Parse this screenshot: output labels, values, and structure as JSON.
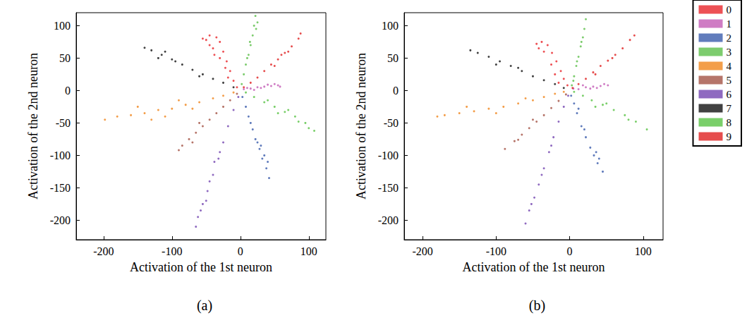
{
  "chart_data": [
    {
      "type": "scatter",
      "title": "(a)",
      "x_label": "Activation of the 1st neuron",
      "y_label": "Activation of the 2nd neuron",
      "xlim": [
        -240,
        125
      ],
      "ylim": [
        -230,
        120
      ],
      "xticks": [
        -200,
        -100,
        0,
        100
      ],
      "yticks": [
        -200,
        -150,
        -100,
        -50,
        0,
        50,
        100
      ],
      "series": [
        {
          "name": "0",
          "color": "#e8262a",
          "values": [
            [
              -5,
              5
            ],
            [
              -10,
              15
            ],
            [
              -15,
              30
            ],
            [
              -20,
              45
            ],
            [
              -25,
              60
            ],
            [
              -30,
              75
            ],
            [
              -35,
              82
            ],
            [
              -45,
              85
            ],
            [
              -50,
              78
            ],
            [
              -40,
              65
            ],
            [
              -30,
              50
            ],
            [
              -22,
              35
            ],
            [
              -45,
              70
            ],
            [
              -55,
              80
            ],
            [
              -18,
              20
            ],
            [
              -38,
              55
            ]
          ]
        },
        {
          "name": "1",
          "color": "#c35bb5",
          "values": [
            [
              5,
              2
            ],
            [
              15,
              3
            ],
            [
              25,
              5
            ],
            [
              35,
              6
            ],
            [
              45,
              7
            ],
            [
              55,
              8
            ],
            [
              50,
              10
            ],
            [
              40,
              9
            ],
            [
              30,
              4
            ],
            [
              20,
              1
            ],
            [
              10,
              4
            ],
            [
              58,
              6
            ]
          ]
        },
        {
          "name": "2",
          "color": "#3a5bab",
          "values": [
            [
              3,
              -10
            ],
            [
              8,
              -25
            ],
            [
              12,
              -40
            ],
            [
              18,
              -60
            ],
            [
              22,
              -75
            ],
            [
              28,
              -90
            ],
            [
              32,
              -105
            ],
            [
              38,
              -120
            ],
            [
              42,
              -135
            ],
            [
              35,
              -100
            ],
            [
              25,
              -80
            ],
            [
              15,
              -50
            ],
            [
              40,
              -110
            ],
            [
              30,
              -85
            ]
          ]
        },
        {
          "name": "3",
          "color": "#5cbf4a",
          "values": [
            [
              2,
              10
            ],
            [
              5,
              25
            ],
            [
              8,
              40
            ],
            [
              12,
              55
            ],
            [
              15,
              70
            ],
            [
              18,
              85
            ],
            [
              20,
              100
            ],
            [
              22,
              115
            ],
            [
              25,
              105
            ],
            [
              14,
              75
            ],
            [
              10,
              50
            ],
            [
              23,
              95
            ]
          ]
        },
        {
          "name": "4",
          "color": "#f0861d",
          "values": [
            [
              -10,
              -3
            ],
            [
              -25,
              -8
            ],
            [
              -40,
              -12
            ],
            [
              -60,
              -18
            ],
            [
              -80,
              -22
            ],
            [
              -100,
              -28
            ],
            [
              -120,
              -30
            ],
            [
              -140,
              -35
            ],
            [
              -160,
              -38
            ],
            [
              -180,
              -40
            ],
            [
              -198,
              -45
            ],
            [
              -150,
              -25
            ],
            [
              -110,
              -40
            ],
            [
              -70,
              -28
            ],
            [
              -130,
              -45
            ],
            [
              -90,
              -15
            ]
          ]
        },
        {
          "name": "5",
          "color": "#a45245",
          "values": [
            [
              -5,
              -5
            ],
            [
              -15,
              -15
            ],
            [
              -25,
              -25
            ],
            [
              -35,
              -35
            ],
            [
              -45,
              -45
            ],
            [
              -55,
              -55
            ],
            [
              -65,
              -65
            ],
            [
              -75,
              -75
            ],
            [
              -85,
              -85
            ],
            [
              -90,
              -92
            ],
            [
              -60,
              -50
            ],
            [
              -70,
              -80
            ]
          ]
        },
        {
          "name": "6",
          "color": "#7345b0",
          "values": [
            [
              -3,
              -10
            ],
            [
              -10,
              -30
            ],
            [
              -18,
              -55
            ],
            [
              -25,
              -80
            ],
            [
              -32,
              -105
            ],
            [
              -40,
              -130
            ],
            [
              -48,
              -155
            ],
            [
              -55,
              -175
            ],
            [
              -62,
              -195
            ],
            [
              -65,
              -210
            ],
            [
              -50,
              -170
            ],
            [
              -38,
              -110
            ],
            [
              -58,
              -185
            ],
            [
              -45,
              -140
            ],
            [
              -30,
              -95
            ]
          ]
        },
        {
          "name": "7",
          "color": "#111111",
          "values": [
            [
              -10,
              5
            ],
            [
              -25,
              12
            ],
            [
              -40,
              18
            ],
            [
              -55,
              25
            ],
            [
              -70,
              32
            ],
            [
              -85,
              40
            ],
            [
              -100,
              48
            ],
            [
              -115,
              55
            ],
            [
              -130,
              62
            ],
            [
              -140,
              66
            ],
            [
              -120,
              50
            ],
            [
              -95,
              45
            ],
            [
              -60,
              22
            ],
            [
              -110,
              60
            ]
          ]
        },
        {
          "name": "8",
          "color": "#59c345",
          "values": [
            [
              8,
              -3
            ],
            [
              20,
              -10
            ],
            [
              35,
              -18
            ],
            [
              50,
              -25
            ],
            [
              65,
              -33
            ],
            [
              80,
              -40
            ],
            [
              95,
              -50
            ],
            [
              108,
              -62
            ],
            [
              100,
              -58
            ],
            [
              70,
              -30
            ],
            [
              55,
              -35
            ],
            [
              85,
              -48
            ],
            [
              40,
              -15
            ]
          ]
        },
        {
          "name": "9",
          "color": "#e02020",
          "values": [
            [
              5,
              5
            ],
            [
              15,
              12
            ],
            [
              25,
              20
            ],
            [
              35,
              30
            ],
            [
              45,
              40
            ],
            [
              55,
              48
            ],
            [
              65,
              58
            ],
            [
              75,
              68
            ],
            [
              85,
              80
            ],
            [
              88,
              88
            ],
            [
              60,
              55
            ],
            [
              70,
              60
            ],
            [
              50,
              38
            ]
          ]
        }
      ]
    },
    {
      "type": "scatter",
      "title": "(b)",
      "legend": "right",
      "x_label": "Activation of the 1st neuron",
      "y_label": "Activation of the 2nd neuron",
      "xlim": [
        -225,
        127
      ],
      "ylim": [
        -230,
        120
      ],
      "xticks": [
        -200,
        -100,
        0,
        100
      ],
      "yticks": [
        -200,
        -150,
        -100,
        -50,
        0,
        50,
        100
      ],
      "series": [
        {
          "name": "0",
          "color": "#e8262a",
          "values": [
            [
              -3,
              8
            ],
            [
              -8,
              18
            ],
            [
              -12,
              30
            ],
            [
              -18,
              45
            ],
            [
              -24,
              58
            ],
            [
              -30,
              70
            ],
            [
              -38,
              75
            ],
            [
              -45,
              72
            ],
            [
              -35,
              60
            ],
            [
              -25,
              40
            ],
            [
              -15,
              12
            ],
            [
              -42,
              65
            ],
            [
              -20,
              25
            ]
          ]
        },
        {
          "name": "1",
          "color": "#c35bb5",
          "values": [
            [
              5,
              3
            ],
            [
              12,
              2
            ],
            [
              22,
              5
            ],
            [
              32,
              6
            ],
            [
              42,
              7
            ],
            [
              52,
              8
            ],
            [
              47,
              10
            ],
            [
              37,
              4
            ],
            [
              18,
              8
            ],
            [
              28,
              3
            ]
          ]
        },
        {
          "name": "2",
          "color": "#3a5bab",
          "values": [
            [
              2,
              -8
            ],
            [
              6,
              -20
            ],
            [
              10,
              -35
            ],
            [
              16,
              -55
            ],
            [
              22,
              -72
            ],
            [
              28,
              -88
            ],
            [
              33,
              -100
            ],
            [
              38,
              -112
            ],
            [
              45,
              -125
            ],
            [
              36,
              -95
            ],
            [
              20,
              -60
            ],
            [
              12,
              -28
            ],
            [
              40,
              -105
            ]
          ]
        },
        {
          "name": "3",
          "color": "#5cbf4a",
          "values": [
            [
              3,
              8
            ],
            [
              6,
              22
            ],
            [
              9,
              38
            ],
            [
              12,
              52
            ],
            [
              15,
              68
            ],
            [
              18,
              82
            ],
            [
              20,
              95
            ],
            [
              22,
              110
            ],
            [
              16,
              75
            ],
            [
              10,
              45
            ],
            [
              5,
              15
            ]
          ]
        },
        {
          "name": "4",
          "color": "#f0861d",
          "values": [
            [
              -8,
              -2
            ],
            [
              -20,
              -5
            ],
            [
              -35,
              -10
            ],
            [
              -50,
              -15
            ],
            [
              -70,
              -20
            ],
            [
              -90,
              -25
            ],
            [
              -110,
              -28
            ],
            [
              -130,
              -32
            ],
            [
              -150,
              -35
            ],
            [
              -170,
              -38
            ],
            [
              -180,
              -40
            ],
            [
              -100,
              -35
            ],
            [
              -60,
              -12
            ],
            [
              -140,
              -25
            ]
          ]
        },
        {
          "name": "5",
          "color": "#a45245",
          "values": [
            [
              -5,
              -6
            ],
            [
              -15,
              -16
            ],
            [
              -25,
              -27
            ],
            [
              -35,
              -38
            ],
            [
              -45,
              -48
            ],
            [
              -55,
              -58
            ],
            [
              -65,
              -68
            ],
            [
              -75,
              -78
            ],
            [
              -88,
              -90
            ],
            [
              -50,
              -45
            ],
            [
              -70,
              -76
            ]
          ]
        },
        {
          "name": "6",
          "color": "#7345b0",
          "values": [
            [
              -2,
              -8
            ],
            [
              -8,
              -25
            ],
            [
              -15,
              -48
            ],
            [
              -22,
              -72
            ],
            [
              -28,
              -95
            ],
            [
              -35,
              -120
            ],
            [
              -42,
              -145
            ],
            [
              -48,
              -165
            ],
            [
              -55,
              -185
            ],
            [
              -60,
              -205
            ],
            [
              -38,
              -130
            ],
            [
              -25,
              -85
            ],
            [
              -52,
              -175
            ]
          ]
        },
        {
          "name": "7",
          "color": "#111111",
          "values": [
            [
              -8,
              4
            ],
            [
              -20,
              10
            ],
            [
              -35,
              16
            ],
            [
              -50,
              22
            ],
            [
              -65,
              30
            ],
            [
              -80,
              38
            ],
            [
              -95,
              45
            ],
            [
              -110,
              52
            ],
            [
              -125,
              58
            ],
            [
              -135,
              62
            ],
            [
              -100,
              40
            ],
            [
              -70,
              35
            ]
          ]
        },
        {
          "name": "8",
          "color": "#59c345",
          "values": [
            [
              6,
              -2
            ],
            [
              18,
              -8
            ],
            [
              30,
              -15
            ],
            [
              45,
              -22
            ],
            [
              60,
              -30
            ],
            [
              75,
              -38
            ],
            [
              90,
              -48
            ],
            [
              105,
              -60
            ],
            [
              80,
              -45
            ],
            [
              50,
              -20
            ],
            [
              35,
              -25
            ]
          ]
        },
        {
          "name": "9",
          "color": "#e02020",
          "values": [
            [
              4,
              4
            ],
            [
              12,
              10
            ],
            [
              22,
              18
            ],
            [
              32,
              28
            ],
            [
              42,
              38
            ],
            [
              52,
              46
            ],
            [
              62,
              55
            ],
            [
              72,
              65
            ],
            [
              82,
              78
            ],
            [
              88,
              85
            ],
            [
              58,
              50
            ],
            [
              35,
              25
            ]
          ]
        }
      ]
    }
  ]
}
